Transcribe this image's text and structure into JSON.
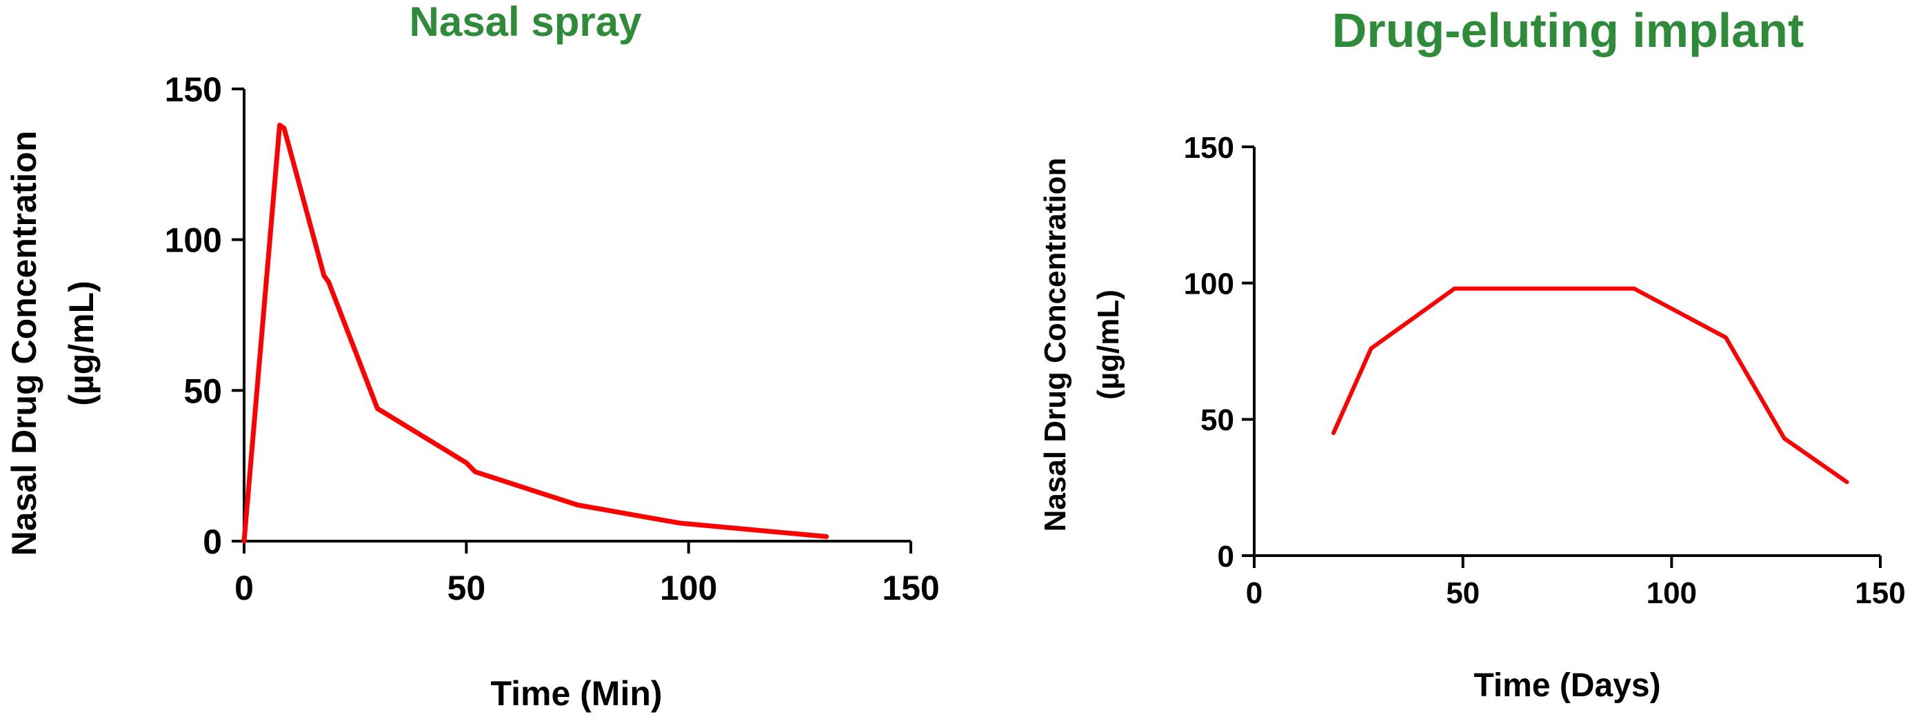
{
  "chart_data": [
    {
      "type": "line",
      "title": "Nasal spray",
      "xlabel": "Time (Min)",
      "ylabel_lines": [
        "Nasal Drug Concentration",
        "(µg/mL)"
      ],
      "xlim": [
        0,
        150
      ],
      "ylim": [
        0,
        150
      ],
      "xticks": [
        0,
        50,
        100,
        150
      ],
      "yticks": [
        0,
        50,
        100,
        150
      ],
      "grid": false,
      "series": [
        {
          "color": "#ff0000",
          "x": [
            0,
            8,
            9,
            18,
            19,
            30,
            50,
            52,
            75,
            98,
            131
          ],
          "y": [
            0,
            138,
            137,
            88,
            86,
            44,
            26,
            23,
            12,
            6,
            1.5
          ]
        }
      ]
    },
    {
      "type": "line",
      "title": "Drug-eluting implant",
      "xlabel": "Time (Days)",
      "ylabel_lines": [
        "Nasal Drug Concentration",
        "(µg/mL)"
      ],
      "xlim": [
        0,
        150
      ],
      "ylim": [
        0,
        150
      ],
      "xticks": [
        0,
        50,
        100,
        150
      ],
      "yticks": [
        0,
        50,
        100,
        150
      ],
      "grid": false,
      "series": [
        {
          "color": "#ff0000",
          "x": [
            19,
            28,
            48,
            91,
            113,
            127,
            142
          ],
          "y": [
            45,
            76,
            98,
            98,
            80,
            43,
            27
          ]
        }
      ]
    }
  ]
}
